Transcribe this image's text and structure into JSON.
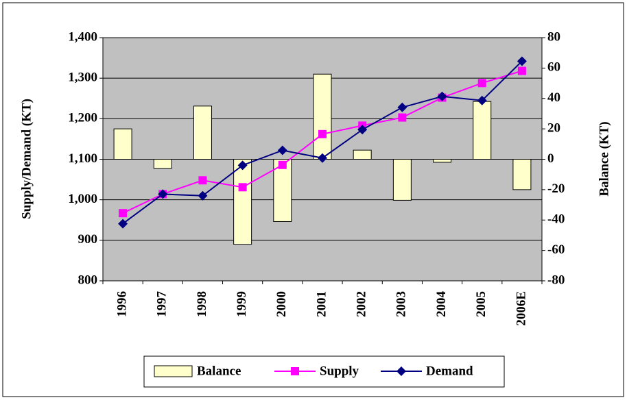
{
  "chart_data": {
    "type": "bar_line",
    "y_label": "Supply/Demand (KT)",
    "y2_label": "Balance (KT)",
    "categories": [
      "1996",
      "1997",
      "1998",
      "1999",
      "2000",
      "2001",
      "2002",
      "2003",
      "2004",
      "2005",
      "2006E"
    ],
    "series": [
      {
        "name": "Balance",
        "type": "bar",
        "axis": "y2",
        "color": "#ffffcc",
        "values": [
          20,
          -6,
          35,
          -56,
          -41,
          56,
          6,
          -27,
          -2,
          38,
          -20
        ]
      },
      {
        "name": "Supply",
        "type": "line",
        "axis": "y",
        "color": "#ff00ff",
        "marker": "square",
        "values": [
          967,
          1014,
          1048,
          1031,
          1086,
          1162,
          1183,
          1203,
          1252,
          1288,
          1318
        ]
      },
      {
        "name": "Demand",
        "type": "line",
        "axis": "y",
        "color": "#000080",
        "marker": "diamond",
        "values": [
          941,
          1014,
          1010,
          1085,
          1122,
          1103,
          1173,
          1228,
          1255,
          1245,
          1342
        ]
      }
    ],
    "ylim": [
      800,
      1400
    ],
    "yticks": [
      800,
      900,
      {
        "value": 1000,
        "label": "1,000"
      },
      {
        "value": 1100,
        "label": "1,100"
      },
      {
        "value": 1200,
        "label": "1,200"
      },
      {
        "value": 1300,
        "label": "1,300"
      },
      {
        "value": 1400,
        "label": "1,400"
      }
    ],
    "y2lim": [
      -80,
      80
    ],
    "y2ticks": [
      -80,
      -60,
      -40,
      -20,
      0,
      20,
      40,
      60,
      80
    ],
    "grid": true,
    "legend": "bottom"
  }
}
